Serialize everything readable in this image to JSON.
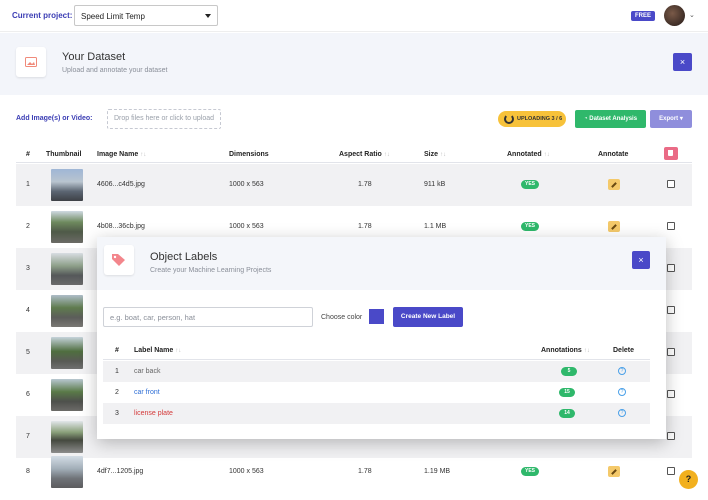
{
  "topbar": {
    "current_project_label": "Current project:",
    "project_value": "Speed Limit Temp",
    "plan_badge": "FREE"
  },
  "dataset": {
    "title": "Your Dataset",
    "subtitle": "Upload and annotate your dataset",
    "close": "×"
  },
  "upload": {
    "add_label": "Add Image(s) or Video:",
    "dropzone_text": "Drop files here or click to upload",
    "uploading_status": "UPLOADING 3 / 6",
    "analysis_label": "Dataset Analysis",
    "export_label": "Export ▾"
  },
  "table": {
    "headers": {
      "num": "#",
      "thumb": "Thumbnail",
      "name": "Image Name",
      "dims": "Dimensions",
      "aspect": "Aspect Ratio",
      "size": "Size",
      "annotated": "Annotated",
      "annotate": "Annotate"
    },
    "rows": [
      {
        "num": "1",
        "name": "4606...c4d5.jpg",
        "dims": "1000 x 563",
        "aspect": "1.78",
        "size": "911 kB",
        "annotated": "YES"
      },
      {
        "num": "2",
        "name": "4b08...36cb.jpg",
        "dims": "1000 x 563",
        "aspect": "1.78",
        "size": "1.1 MB",
        "annotated": "YES"
      },
      {
        "num": "3"
      },
      {
        "num": "4"
      },
      {
        "num": "5"
      },
      {
        "num": "6"
      },
      {
        "num": "7"
      },
      {
        "num": "8",
        "name": "4df7...1205.jpg",
        "dims": "1000 x 563",
        "aspect": "1.78",
        "size": "1.19 MB",
        "annotated": "YES"
      }
    ]
  },
  "modal": {
    "title": "Object Labels",
    "subtitle": "Create your Machine Learning Projects",
    "close": "×",
    "input_placeholder": "e.g. boat, car, person, hat",
    "choose_color": "Choose color",
    "selected_color": "#4a49c8",
    "create_button": "Create New Label",
    "headers": {
      "num": "#",
      "name": "Label Name",
      "annotations": "Annotations",
      "delete": "Delete"
    },
    "labels": [
      {
        "num": "1",
        "name": "car back",
        "count": "5",
        "color": "#666666"
      },
      {
        "num": "2",
        "name": "car front",
        "count": "15",
        "color": "#2f6fd6"
      },
      {
        "num": "3",
        "name": "license plate",
        "count": "14",
        "color": "#d43a3a"
      }
    ]
  },
  "help": "?"
}
